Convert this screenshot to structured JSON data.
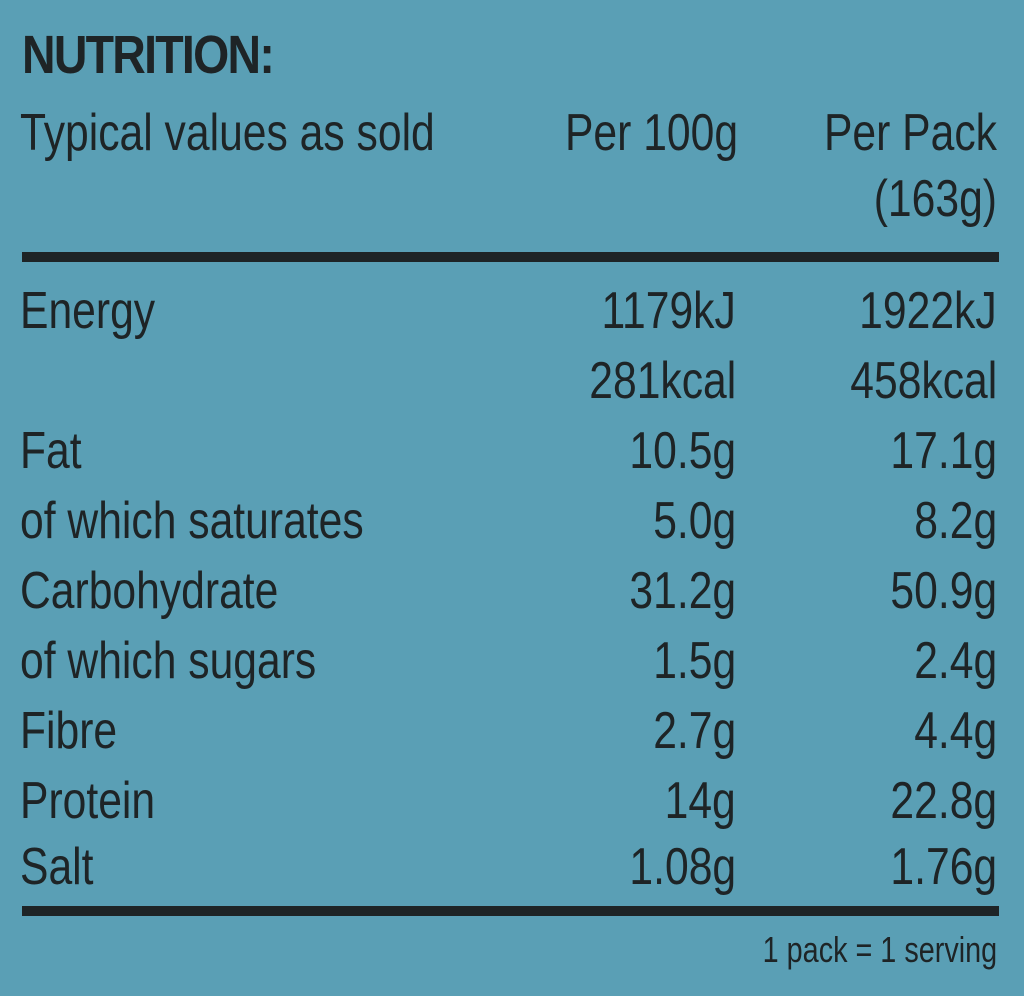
{
  "title": "NUTRITION:",
  "header": {
    "label": "Typical values as sold",
    "col1": "Per 100g",
    "col2_line1": "Per Pack",
    "col2_line2": "(163g)"
  },
  "rows": [
    {
      "label": "Energy",
      "per100g": "1179kJ",
      "perPack": "1922kJ"
    },
    {
      "label": "",
      "per100g": "281kcal",
      "perPack": "458kcal"
    },
    {
      "label": "Fat",
      "per100g": "10.5g",
      "perPack": "17.1g"
    },
    {
      "label": "of which saturates",
      "per100g": "5.0g",
      "perPack": "8.2g"
    },
    {
      "label": "Carbohydrate",
      "per100g": "31.2g",
      "perPack": "50.9g"
    },
    {
      "label": "of which sugars",
      "per100g": "1.5g",
      "perPack": "2.4g"
    },
    {
      "label": "Fibre",
      "per100g": "2.7g",
      "perPack": "4.4g"
    },
    {
      "label": "Protein",
      "per100g": "14g",
      "perPack": "22.8g"
    },
    {
      "label": "Salt",
      "per100g": "1.08g",
      "perPack": "1.76g"
    }
  ],
  "footnote": "1 pack = 1 serving"
}
